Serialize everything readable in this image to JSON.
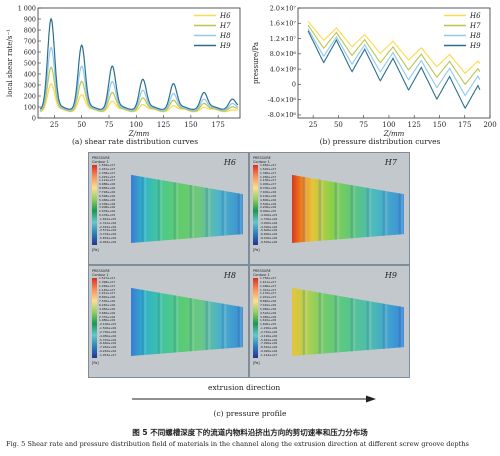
{
  "chart_data": [
    {
      "type": "line",
      "title": "",
      "xlabel": "Z/mm",
      "ylabel": "local shear rate/s⁻¹",
      "xlim": [
        10,
        195
      ],
      "ylim": [
        0,
        1000
      ],
      "xticks": [
        25,
        50,
        75,
        100,
        125,
        150,
        175
      ],
      "yticks": [
        0,
        100,
        200,
        300,
        400,
        500,
        600,
        700,
        800,
        900,
        1000
      ],
      "ytick_labels": [
        "0",
        "100",
        "200",
        "300",
        "400",
        "500",
        "600",
        "700",
        "800",
        "900",
        "1 000"
      ],
      "legend_position": "top-right",
      "grid": false,
      "peaks_x": [
        22,
        50,
        78,
        106,
        134,
        162,
        188
      ],
      "series": [
        {
          "name": "H6",
          "color": "#ffd84d",
          "peaks": [
            310,
            210,
            150,
            120,
            110,
            95,
            70
          ],
          "baseline": 55
        },
        {
          "name": "H7",
          "color": "#b9c64a",
          "peaks": [
            460,
            330,
            230,
            180,
            160,
            130,
            100
          ],
          "baseline": 60
        },
        {
          "name": "H8",
          "color": "#8fc8f0",
          "peaks": [
            640,
            470,
            330,
            250,
            220,
            170,
            130
          ],
          "baseline": 65
        },
        {
          "name": "H9",
          "color": "#2a6f8f",
          "peaks": [
            900,
            660,
            470,
            350,
            310,
            230,
            170
          ],
          "baseline": 75
        }
      ],
      "caption": "(a) shear rate distribution curves"
    },
    {
      "type": "line",
      "title": "",
      "xlabel": "Z/mm",
      "ylabel": "pressure/Pa",
      "xlim": [
        10,
        200
      ],
      "ylim": [
        -8800000.0,
        20000000.0
      ],
      "xticks": [
        25,
        50,
        75,
        100,
        125,
        150,
        175,
        200
      ],
      "yticks": [
        20000000,
        16000000,
        12000000,
        8000000,
        4000000,
        0,
        -4000000,
        -8000000
      ],
      "ytick_labels": [
        "2.0×10⁷",
        "1.6×10⁷",
        "1.2×10⁷",
        "8.0×10⁶",
        "4.0×10⁶",
        "0",
        "-4.0×10⁶",
        "-8.0×10⁶"
      ],
      "legend_position": "top-right",
      "grid": false,
      "x_range": [
        20,
        190
      ],
      "period": 28,
      "series": [
        {
          "name": "H6",
          "color": "#ffd84d",
          "start": 14500000,
          "end": 4000000,
          "amp": 2000000
        },
        {
          "name": "H7",
          "color": "#b9c64a",
          "start": 13000000,
          "end": 1500000,
          "amp": 2500000
        },
        {
          "name": "H8",
          "color": "#8fc8f0",
          "start": 11500000,
          "end": -1000000,
          "amp": 3000000
        },
        {
          "name": "H9",
          "color": "#2a6f8f",
          "start": 10500000,
          "end": -4000000,
          "amp": 3500000
        }
      ],
      "caption": "(b) pressure distribution curves"
    }
  ],
  "contours": [
    {
      "label": "H6",
      "legend_title": "PRESSURE",
      "legend_sub": "Contour 1",
      "unit": "[Pa]",
      "values": [
        "1.564e+07",
        "1.451e+07",
        "1.338e+07",
        "1.225e+07",
        "1.112e+07",
        "9.988e+06",
        "8.858e+06",
        "7.728e+06",
        "6.598e+06",
        "5.468e+06",
        "4.338e+06",
        "3.208e+06",
        "2.078e+06",
        "9.478e+05",
        "-1.822e+05",
        "-1.312e+06",
        "-2.442e+06",
        "-3.572e+06",
        "-4.702e+06",
        "-5.832e+06",
        "-6.962e+06"
      ]
    },
    {
      "label": "H7",
      "legend_title": "PRESSURE",
      "legend_sub": "Contour 1",
      "unit": "[Pa]",
      "values": [
        "1.650e+07",
        "1.520e+07",
        "1.390e+07",
        "1.260e+07",
        "1.130e+07",
        "1.000e+07",
        "8.700e+06",
        "7.400e+06",
        "6.100e+06",
        "4.800e+06",
        "3.500e+06",
        "2.200e+06",
        "9.000e+05",
        "-4.000e+05",
        "-1.700e+06",
        "-3.000e+06",
        "-4.300e+06",
        "-5.600e+06",
        "-6.900e+06",
        "-8.200e+06",
        "-9.500e+06"
      ]
    },
    {
      "label": "H8",
      "legend_title": "PRESSURE",
      "legend_sub": "Contour 1",
      "unit": "[Pa]",
      "values": [
        "1.527e+07",
        "1.398e+07",
        "1.269e+07",
        "1.140e+07",
        "1.011e+07",
        "8.820e+06",
        "7.530e+06",
        "6.240e+06",
        "4.950e+06",
        "3.660e+06",
        "2.370e+06",
        "1.080e+06",
        "-2.100e+05",
        "-1.500e+06",
        "-2.790e+06",
        "-4.080e+06",
        "-5.370e+06",
        "-6.660e+06",
        "-7.950e+06",
        "-9.240e+06",
        "-1.053e+07"
      ]
    },
    {
      "label": "H9",
      "legend_title": "PRESSURE",
      "legend_sub": "Contour 1",
      "unit": "[Pa]",
      "values": [
        "1.756e+07",
        "1.611e+07",
        "1.466e+07",
        "1.321e+07",
        "1.176e+07",
        "1.031e+07",
        "8.860e+06",
        "7.410e+06",
        "5.960e+06",
        "4.510e+06",
        "3.060e+06",
        "1.610e+06",
        "1.600e+05",
        "-1.290e+06",
        "-2.740e+06",
        "-4.190e+06",
        "-5.640e+06",
        "-7.090e+06",
        "-8.540e+06",
        "-9.990e+06",
        "-1.144e+07"
      ]
    }
  ],
  "extrusion_direction": "extrusion direction",
  "caption_c": "(c) pressure profile",
  "figure_caption_cn": "图 5   不同螺槽深度下的流道内物料沿挤出方向的剪切速率和压力分布场",
  "figure_caption_en": "Fig. 5   Shear rate and pressure distribution field of materials in the channel along the extrusion direction at different screw groove depths",
  "colors": {
    "contour_bg": "#c3c8cd",
    "frame_border": "#7f8c99",
    "arrow": "#222222"
  }
}
